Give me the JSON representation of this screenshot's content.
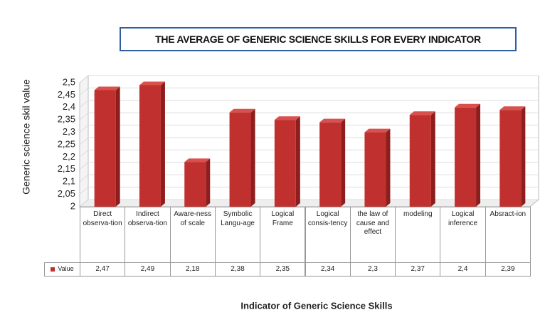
{
  "chart_data": {
    "type": "bar",
    "title": "THE AVERAGE OF GENERIC SCIENCE SKILLS FOR EVERY INDICATOR",
    "xlabel": "Indicator of Generic Science Skills",
    "ylabel": "Generic science skil value",
    "categories": [
      "Direct observa-tion",
      "Indirect observa-tion",
      "Aware-ness of scale",
      "Symbolic Langu-age",
      "Logical Frame",
      "Logical consis-tency",
      "the law of cause and effect",
      "modeling",
      "Logical inference",
      "Absract-ion"
    ],
    "series": [
      {
        "name": "Value",
        "color": "#c0302f",
        "values": [
          2.47,
          2.49,
          2.18,
          2.38,
          2.35,
          2.34,
          2.3,
          2.37,
          2.4,
          2.39
        ],
        "value_labels": [
          "2,47",
          "2,49",
          "2,18",
          "2,38",
          "2,35",
          "2,34",
          "2,3",
          "2,37",
          "2,4",
          "2,39"
        ]
      }
    ],
    "ylim": [
      2,
      2.5
    ],
    "yticks": [
      2,
      {
        "value": 2.05,
        "label": "2,05"
      },
      {
        "value": 2.1,
        "label": "2,1"
      },
      {
        "value": 2.15,
        "label": "2,15"
      },
      {
        "value": 2.2,
        "label": "2,2"
      },
      {
        "value": 2.25,
        "label": "2,25"
      },
      {
        "value": 2.3,
        "label": "2,3"
      },
      {
        "value": 2.35,
        "label": "2,35"
      },
      {
        "value": 2.4,
        "label": "2,4"
      },
      {
        "value": 2.45,
        "label": "2,45"
      },
      {
        "value": 2.5,
        "label": "2,5"
      }
    ],
    "grid": true
  }
}
